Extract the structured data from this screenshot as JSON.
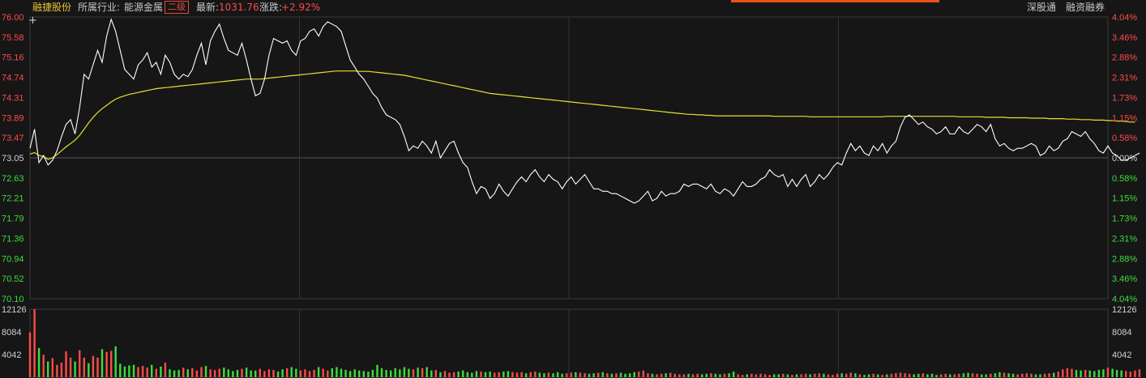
{
  "header": {
    "stock_name": "融捷股份",
    "industry_label": "所属行业:",
    "industry_name": "能源金属",
    "industry_level": "二级",
    "latest_label": "最新:",
    "latest_value": "1031.76",
    "change_label": "涨跌:",
    "change_value": "+2.92%",
    "buttons": [
      "深股通",
      "融资融券"
    ]
  },
  "colors": {
    "background": "#161616",
    "price_line": "#ffffff",
    "avg_line": "#e6e233",
    "up": "#ff4a4a",
    "down": "#3ddc3d",
    "neutral": "#d0d0d0",
    "accent_bar": "#e8531e"
  },
  "chart_data": [
    {
      "type": "line",
      "title": "",
      "ylim": [
        70.1,
        76.0
      ],
      "y_ticks": [
        "76.00",
        "75.58",
        "75.16",
        "74.74",
        "74.31",
        "73.89",
        "73.47",
        "73.05",
        "72.63",
        "72.21",
        "71.79",
        "71.36",
        "70.94",
        "70.52",
        "70.10"
      ],
      "y_ticks_right": [
        "4.04%",
        "3.46%",
        "2.88%",
        "2.31%",
        "1.73%",
        "1.15%",
        "0.58%",
        "0.00%",
        "0.58%",
        "1.15%",
        "1.73%",
        "2.31%",
        "2.88%",
        "3.46%",
        "4.04%"
      ],
      "reference_price": 73.05,
      "n_points": 240,
      "series": [
        {
          "kind": "price",
          "values": [
            73.25,
            73.65,
            72.95,
            73.1,
            72.9,
            73.0,
            73.2,
            73.5,
            73.75,
            73.85,
            73.55,
            74.1,
            74.8,
            74.7,
            75.0,
            75.3,
            75.05,
            75.6,
            75.95,
            75.7,
            75.3,
            74.9,
            74.8,
            74.7,
            75.0,
            75.1,
            75.25,
            74.95,
            75.05,
            74.8,
            75.2,
            75.05,
            74.8,
            74.7,
            74.8,
            74.75,
            74.9,
            75.2,
            75.45,
            75.0,
            75.5,
            75.7,
            75.85,
            75.55,
            75.3,
            75.25,
            75.2,
            75.45,
            75.1,
            74.7,
            74.35,
            74.4,
            74.7,
            75.2,
            75.55,
            75.5,
            75.45,
            75.5,
            75.3,
            75.2,
            75.5,
            75.55,
            75.7,
            75.75,
            75.6,
            75.8,
            75.9,
            75.85,
            75.8,
            75.7,
            75.4,
            75.1,
            74.95,
            74.8,
            74.7,
            74.55,
            74.4,
            74.3,
            74.1,
            73.95,
            73.9,
            73.85,
            73.75,
            73.5,
            73.2,
            73.3,
            73.25,
            73.4,
            73.3,
            73.15,
            73.4,
            73.05,
            73.2,
            73.35,
            73.4,
            73.15,
            72.95,
            72.85,
            72.55,
            72.3,
            72.45,
            72.4,
            72.2,
            72.3,
            72.5,
            72.35,
            72.25,
            72.4,
            72.55,
            72.65,
            72.55,
            72.7,
            72.8,
            72.65,
            72.55,
            72.7,
            72.6,
            72.55,
            72.4,
            72.55,
            72.65,
            72.5,
            72.6,
            72.7,
            72.55,
            72.4,
            72.4,
            72.35,
            72.35,
            72.3,
            72.3,
            72.25,
            72.2,
            72.15,
            72.1,
            72.15,
            72.25,
            72.35,
            72.15,
            72.2,
            72.35,
            72.25,
            72.3,
            72.3,
            72.35,
            72.5,
            72.45,
            72.5,
            72.5,
            72.45,
            72.4,
            72.5,
            72.35,
            72.3,
            72.4,
            72.35,
            72.25,
            72.4,
            72.55,
            72.45,
            72.45,
            72.5,
            72.6,
            72.65,
            72.8,
            72.7,
            72.65,
            72.7,
            72.45,
            72.6,
            72.45,
            72.6,
            72.7,
            72.45,
            72.55,
            72.7,
            72.6,
            72.7,
            72.85,
            72.95,
            72.9,
            73.15,
            73.35,
            73.2,
            73.3,
            73.15,
            73.1,
            73.3,
            73.2,
            73.35,
            73.15,
            73.3,
            73.4,
            73.7,
            73.9,
            73.95,
            73.85,
            73.75,
            73.8,
            73.7,
            73.65,
            73.55,
            73.6,
            73.7,
            73.55,
            73.55,
            73.7,
            73.6,
            73.55,
            73.65,
            73.75,
            73.7,
            73.6,
            73.75,
            73.45,
            73.3,
            73.35,
            73.25,
            73.2,
            73.25,
            73.25,
            73.3,
            73.35,
            73.3,
            73.1,
            73.15,
            73.3,
            73.2,
            73.25,
            73.4,
            73.45,
            73.6,
            73.55,
            73.5,
            73.6,
            73.45,
            73.35,
            73.2,
            73.15,
            73.3,
            73.15,
            73.1,
            73.0,
            73.0,
            73.05,
            73.1,
            73.15
          ]
        },
        {
          "kind": "average",
          "values": [
            73.13,
            73.16,
            73.1,
            73.08,
            73.02,
            73.05,
            73.12,
            73.2,
            73.28,
            73.35,
            73.42,
            73.52,
            73.65,
            73.78,
            73.9,
            74.0,
            74.08,
            74.15,
            74.22,
            74.28,
            74.32,
            74.35,
            74.38,
            74.4,
            74.42,
            74.44,
            74.46,
            74.48,
            74.5,
            74.51,
            74.52,
            74.53,
            74.54,
            74.55,
            74.56,
            74.57,
            74.58,
            74.59,
            74.6,
            74.61,
            74.62,
            74.63,
            74.64,
            74.65,
            74.66,
            74.67,
            74.68,
            74.69,
            74.7,
            74.7,
            74.7,
            74.7,
            74.71,
            74.72,
            74.73,
            74.74,
            74.75,
            74.76,
            74.77,
            74.78,
            74.79,
            74.8,
            74.81,
            74.82,
            74.83,
            74.84,
            74.85,
            74.86,
            74.87,
            74.87,
            74.87,
            74.87,
            74.87,
            74.86,
            74.86,
            74.86,
            74.85,
            74.84,
            74.83,
            74.82,
            74.81,
            74.8,
            74.79,
            74.78,
            74.76,
            74.74,
            74.72,
            74.7,
            74.68,
            74.66,
            74.64,
            74.62,
            74.6,
            74.58,
            74.56,
            74.54,
            74.52,
            74.5,
            74.48,
            74.46,
            74.44,
            74.42,
            74.4,
            74.39,
            74.38,
            74.37,
            74.36,
            74.35,
            74.34,
            74.33,
            74.32,
            74.31,
            74.3,
            74.29,
            74.28,
            74.27,
            74.26,
            74.25,
            74.24,
            74.23,
            74.22,
            74.21,
            74.2,
            74.19,
            74.18,
            74.17,
            74.16,
            74.15,
            74.14,
            74.13,
            74.12,
            74.11,
            74.1,
            74.09,
            74.08,
            74.07,
            74.06,
            74.05,
            74.04,
            74.03,
            74.02,
            74.01,
            74.0,
            73.99,
            73.98,
            73.97,
            73.96,
            73.96,
            73.95,
            73.95,
            73.94,
            73.94,
            73.93,
            73.93,
            73.93,
            73.93,
            73.93,
            73.93,
            73.93,
            73.93,
            73.93,
            73.93,
            73.93,
            73.93,
            73.93,
            73.92,
            73.92,
            73.92,
            73.92,
            73.92,
            73.92,
            73.92,
            73.92,
            73.91,
            73.91,
            73.91,
            73.91,
            73.91,
            73.91,
            73.91,
            73.91,
            73.91,
            73.91,
            73.91,
            73.91,
            73.91,
            73.91,
            73.91,
            73.91,
            73.91,
            73.92,
            73.92,
            73.92,
            73.92,
            73.92,
            73.92,
            73.92,
            73.92,
            73.92,
            73.92,
            73.92,
            73.92,
            73.92,
            73.92,
            73.92,
            73.92,
            73.91,
            73.91,
            73.91,
            73.91,
            73.91,
            73.91,
            73.9,
            73.9,
            73.9,
            73.9,
            73.9,
            73.89,
            73.89,
            73.89,
            73.89,
            73.89,
            73.88,
            73.88,
            73.88,
            73.88,
            73.87,
            73.87,
            73.87,
            73.87,
            73.86,
            73.86,
            73.86,
            73.85,
            73.85,
            73.85,
            73.84,
            73.84,
            73.84,
            73.83,
            73.83,
            73.82,
            73.82,
            73.81,
            73.8,
            73.8
          ]
        }
      ]
    },
    {
      "type": "bar",
      "title": "",
      "ylim": [
        0,
        12126
      ],
      "y_ticks": [
        "12126",
        "8084",
        "4042"
      ],
      "values": [
        8000,
        12126,
        5200,
        4000,
        2800,
        3400,
        2200,
        2600,
        4600,
        3500,
        2800,
        4800,
        3500,
        2500,
        3800,
        3500,
        5000,
        4500,
        4700,
        5500,
        2400,
        1900,
        2100,
        2200,
        1800,
        2000,
        1700,
        2200,
        1500,
        1900,
        2600,
        1400,
        1200,
        1300,
        1700,
        1400,
        1600,
        1200,
        1800,
        2000,
        1400,
        1300,
        1500,
        1700,
        1400,
        1100,
        1300,
        1500,
        1700,
        1200,
        1200,
        1500,
        1100,
        1400,
        1300,
        1000,
        1400,
        1600,
        1800,
        1500,
        1200,
        1400,
        1100,
        1300,
        1800,
        1500,
        1200,
        1600,
        1800,
        1500,
        1300,
        1100,
        1400,
        1200,
        1100,
        1000,
        1300,
        2200,
        1600,
        1300,
        1200,
        1600,
        1400,
        1800,
        1500,
        1400,
        1700,
        1600,
        1800,
        1200,
        1300,
        900,
        1100,
        800,
        900,
        1000,
        1200,
        900,
        800,
        1100,
        1000,
        900,
        1000,
        800,
        900,
        1000,
        1100,
        900,
        800,
        900,
        700,
        900,
        1000,
        800,
        700,
        800,
        700,
        900,
        600,
        700,
        800,
        900,
        800,
        700,
        600,
        700,
        800,
        900,
        700,
        600,
        700,
        800,
        600,
        700,
        900,
        1000,
        1200,
        700,
        600,
        500,
        600,
        700,
        800,
        600,
        500,
        500,
        600,
        500,
        600,
        500,
        600,
        700,
        600,
        500,
        600,
        700,
        1000,
        500,
        400,
        500,
        600,
        500,
        600,
        500,
        400,
        500,
        500,
        600,
        500,
        400,
        500,
        500,
        600,
        500,
        600,
        700,
        600,
        500,
        400,
        600,
        700,
        600,
        800,
        700,
        500,
        400,
        500,
        600,
        500,
        400,
        500,
        600,
        700,
        800,
        700,
        600,
        500,
        600,
        700,
        500,
        600,
        400,
        500,
        600,
        500,
        500,
        600,
        700,
        800,
        700,
        600,
        500,
        500,
        600,
        700,
        900,
        800,
        700,
        600,
        500,
        600,
        700,
        600,
        500,
        500,
        600,
        700,
        800,
        1000,
        1400,
        1600,
        1500,
        1300,
        1200,
        1300,
        1200,
        1100,
        1300,
        1400,
        1700,
        1500,
        1300,
        1200,
        1100,
        1000,
        1200,
        1400
      ]
    }
  ]
}
